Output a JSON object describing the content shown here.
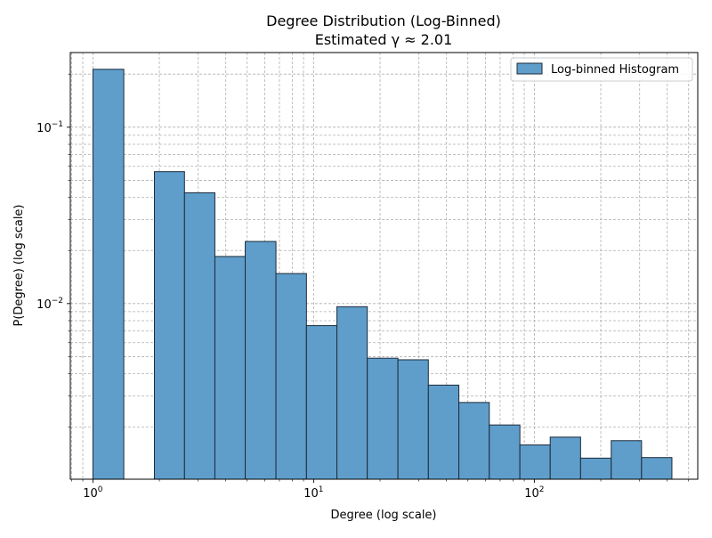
{
  "chart_data": {
    "type": "bar",
    "title": "Degree Distribution (Log-Binned)",
    "subtitle": "Estimated γ ≈ 2.01",
    "xlabel": "Degree (log scale)",
    "ylabel": "P(Degree) (log scale)",
    "x_scale": "log",
    "y_scale": "log",
    "xlim": [
      0.79,
      550
    ],
    "ylim": [
      0.00101,
      0.265
    ],
    "grid": true,
    "legend_position": "top-right",
    "x_ticks": [
      {
        "value": 1,
        "base": "10",
        "exp": "0"
      },
      {
        "value": 10,
        "base": "10",
        "exp": "1"
      },
      {
        "value": 100,
        "base": "10",
        "exp": "2"
      }
    ],
    "y_ticks": [
      {
        "value": 0.01,
        "base": "10",
        "exp": "−2"
      },
      {
        "value": 0.1,
        "base": "10",
        "exp": "−1"
      }
    ],
    "series": [
      {
        "name": "Log-binned Histogram",
        "color": "#5f9ecb",
        "edge_color": "#1c2b3a",
        "bins": [
          {
            "x0": 1.0,
            "x1": 1.38,
            "value": 0.213
          },
          {
            "x0": 1.38,
            "x1": 1.9,
            "value": 0.0
          },
          {
            "x0": 1.9,
            "x1": 2.6,
            "value": 0.056
          },
          {
            "x0": 2.6,
            "x1": 3.57,
            "value": 0.0425
          },
          {
            "x0": 3.57,
            "x1": 4.9,
            "value": 0.0185
          },
          {
            "x0": 4.9,
            "x1": 6.75,
            "value": 0.0225
          },
          {
            "x0": 6.75,
            "x1": 9.28,
            "value": 0.0148
          },
          {
            "x0": 9.28,
            "x1": 12.75,
            "value": 0.0075
          },
          {
            "x0": 12.75,
            "x1": 17.5,
            "value": 0.0096
          },
          {
            "x0": 17.5,
            "x1": 24.1,
            "value": 0.0049
          },
          {
            "x0": 24.1,
            "x1": 33.1,
            "value": 0.0048
          },
          {
            "x0": 33.1,
            "x1": 45.5,
            "value": 0.00345
          },
          {
            "x0": 45.5,
            "x1": 62.5,
            "value": 0.00275
          },
          {
            "x0": 62.5,
            "x1": 86.0,
            "value": 0.00205
          },
          {
            "x0": 86.0,
            "x1": 118.0,
            "value": 0.00158
          },
          {
            "x0": 118.0,
            "x1": 162.0,
            "value": 0.00175
          },
          {
            "x0": 162.0,
            "x1": 223.0,
            "value": 0.00133
          },
          {
            "x0": 223.0,
            "x1": 306.0,
            "value": 0.00167
          },
          {
            "x0": 306.0,
            "x1": 420.0,
            "value": 0.00134
          }
        ]
      }
    ]
  }
}
